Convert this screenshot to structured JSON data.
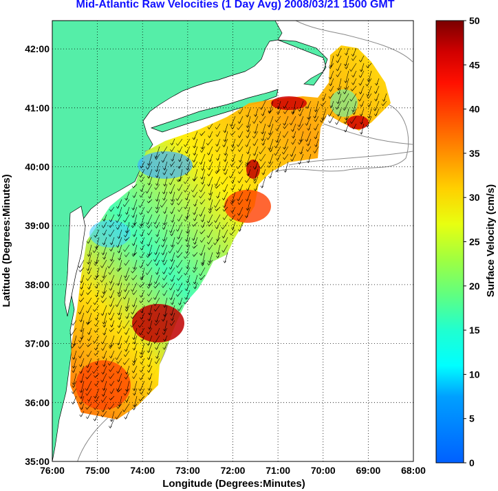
{
  "title": "Mid-Atlantic Raw Velocities (1 Day Avg) 2008/03/21 1500 GMT",
  "xlabel": "Longitude (Degrees:Minutes)",
  "ylabel": "Latitude (Degrees:Minutes)",
  "colorbar": {
    "label": "Surface Velocity (cm/s)",
    "ticks": [
      "0",
      "5",
      "10",
      "15",
      "20",
      "25",
      "30",
      "35",
      "40",
      "45",
      "50"
    ],
    "range": [
      0,
      50
    ]
  },
  "x_ticks": [
    "76:00",
    "75:00",
    "74:00",
    "73:00",
    "72:00",
    "71:00",
    "70:00",
    "69:00",
    "68:00"
  ],
  "y_ticks": [
    "35:00",
    "36:00",
    "37:00",
    "38:00",
    "39:00",
    "40:00",
    "41:00",
    "42:00"
  ],
  "colors": {
    "land": "#55eea8",
    "ocean": "#ffffff",
    "title": "#1010ff",
    "grid": "#000000"
  }
}
